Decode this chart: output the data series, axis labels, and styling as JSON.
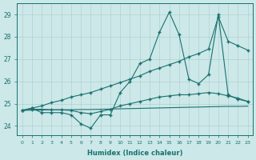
{
  "xlabel": "Humidex (Indice chaleur)",
  "x_values": [
    0,
    1,
    2,
    3,
    4,
    5,
    6,
    7,
    8,
    9,
    10,
    11,
    12,
    13,
    14,
    15,
    16,
    17,
    18,
    19,
    20,
    21,
    22,
    23
  ],
  "line_jagged": [
    24.7,
    24.8,
    24.6,
    24.6,
    24.6,
    24.5,
    24.1,
    23.9,
    24.5,
    24.5,
    25.5,
    26.0,
    26.8,
    27.0,
    28.2,
    29.1,
    28.1,
    26.1,
    25.9,
    26.3,
    29.0,
    25.4,
    25.2,
    25.1
  ],
  "line_diagonal": [
    24.7,
    24.8,
    24.9,
    25.05,
    25.15,
    25.3,
    25.4,
    25.5,
    25.65,
    25.8,
    25.95,
    26.1,
    26.25,
    26.45,
    26.6,
    26.75,
    26.9,
    27.1,
    27.25,
    27.45,
    28.9,
    27.8,
    27.6,
    27.4
  ],
  "line_bell": [
    24.7,
    24.75,
    24.75,
    24.73,
    24.72,
    24.7,
    24.6,
    24.55,
    24.65,
    24.75,
    24.9,
    25.0,
    25.1,
    25.2,
    25.3,
    25.35,
    25.4,
    25.4,
    25.45,
    25.5,
    25.45,
    25.35,
    25.25,
    25.1
  ],
  "line_flat": [
    24.7,
    24.71,
    24.72,
    24.72,
    24.73,
    24.73,
    24.74,
    24.74,
    24.75,
    24.76,
    24.77,
    24.78,
    24.79,
    24.8,
    24.81,
    24.82,
    24.83,
    24.84,
    24.85,
    24.86,
    24.87,
    24.88,
    24.88,
    24.89
  ],
  "ylim": [
    23.6,
    29.5
  ],
  "yticks": [
    24,
    25,
    26,
    27,
    28,
    29
  ],
  "color": "#1a7070",
  "bg_color": "#cce8e8",
  "grid_color": "#aacccc"
}
